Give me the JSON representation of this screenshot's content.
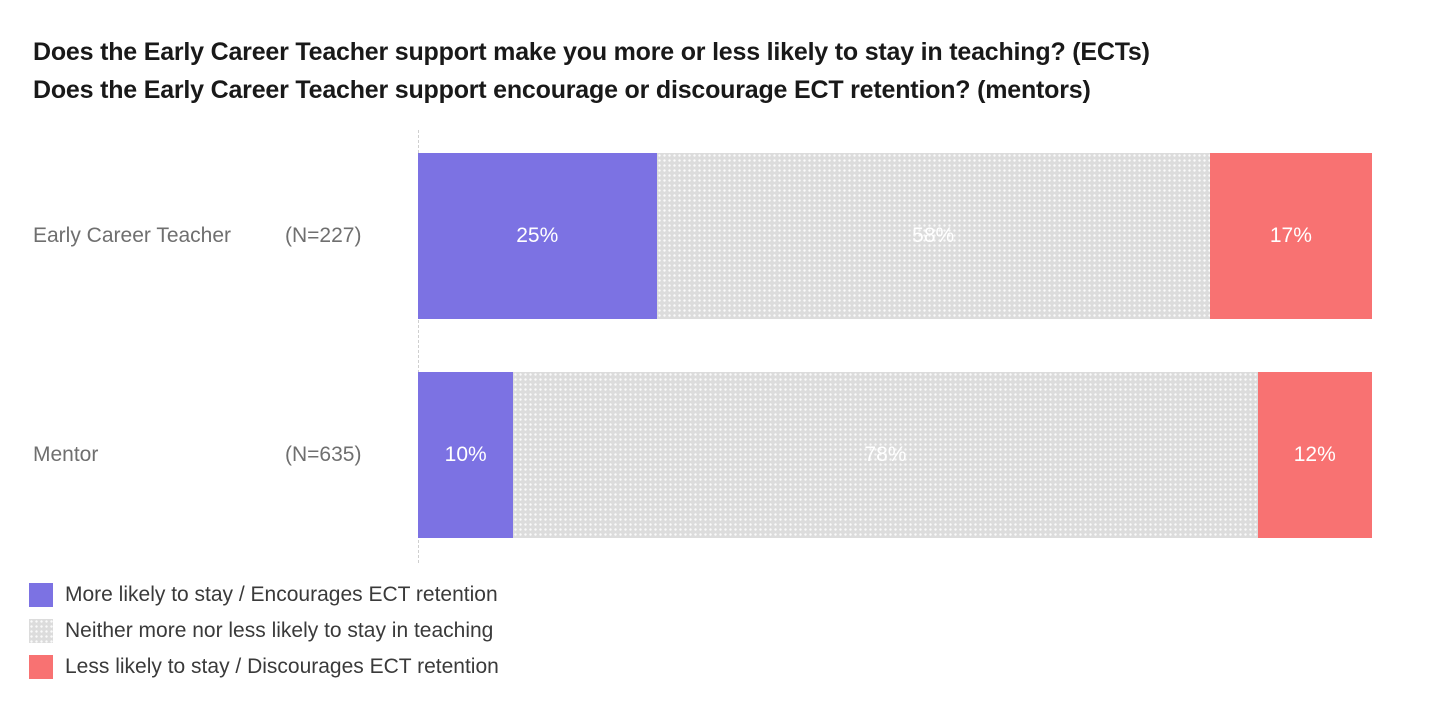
{
  "title": {
    "line1": "Does the Early Career Teacher support make you more or less likely to stay in teaching? (ECTs)",
    "line2": "Does the Early Career Teacher support encourage or discourage ECT retention? (mentors)"
  },
  "chart_data": {
    "type": "bar",
    "variant": "horizontal-stacked",
    "xlim": [
      0,
      100
    ],
    "unit": "percent",
    "grid": false,
    "legend_position": "bottom-left",
    "categories": [
      "Early Career Teacher",
      "Mentor"
    ],
    "sample_sizes": [
      "(N=227)",
      "(N=635)"
    ],
    "series": [
      {
        "name": "More likely to stay / Encourages ECT retention",
        "color": "#7C72E3",
        "values": [
          25,
          10
        ]
      },
      {
        "name": "Neither more nor less likely to stay in teaching",
        "color": "#DCDCDC",
        "values": [
          58,
          78
        ]
      },
      {
        "name": "Less likely to stay / Discourages ECT retention",
        "color": "#F87272",
        "values": [
          17,
          12
        ]
      }
    ],
    "bar_labels": [
      [
        "25%",
        "58%",
        "17%"
      ],
      [
        "10%",
        "78%",
        "12%"
      ]
    ]
  },
  "colors": {
    "background": "#FFFFFF",
    "title_text": "#191919",
    "row_label_text": "#6F6F6F",
    "bar_value_text": "#FFFFFF",
    "legend_text": "#3A3A3A",
    "axis_line": "#CFCFCF"
  }
}
